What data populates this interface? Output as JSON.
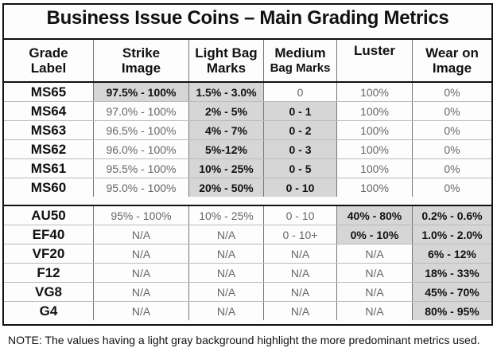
{
  "title": "Business Issue Coins – Main Grading Metrics",
  "headers": [
    {
      "line1": "Grade",
      "line2": "Label"
    },
    {
      "line1": "Strike",
      "line2": "Image"
    },
    {
      "line1": "Light Bag",
      "line2": "Marks"
    },
    {
      "line1": "Medium",
      "line2": "Bag Marks"
    },
    {
      "line1": "Luster",
      "line2": ""
    },
    {
      "line1": "Wear on",
      "line2": "Image"
    }
  ],
  "group1": [
    {
      "grade": "MS65",
      "strike": "97.5% - 100%",
      "light": "1.5% - 3.0%",
      "medium": "0",
      "luster": "100%",
      "wear": "0%"
    },
    {
      "grade": "MS64",
      "strike": "97.0% - 100%",
      "light": "2% - 5%",
      "medium": "0 - 1",
      "luster": "100%",
      "wear": "0%"
    },
    {
      "grade": "MS63",
      "strike": "96.5% - 100%",
      "light": "4% - 7%",
      "medium": "0 - 2",
      "luster": "100%",
      "wear": "0%"
    },
    {
      "grade": "MS62",
      "strike": "96.0% - 100%",
      "light": "5%-12%",
      "medium": "0 - 3",
      "luster": "100%",
      "wear": "0%"
    },
    {
      "grade": "MS61",
      "strike": "95.5% - 100%",
      "light": "10% - 25%",
      "medium": "0 - 5",
      "luster": "100%",
      "wear": "0%"
    },
    {
      "grade": "MS60",
      "strike": "95.0% - 100%",
      "light": "20% - 50%",
      "medium": "0 - 10",
      "luster": "100%",
      "wear": "0%"
    }
  ],
  "group2": [
    {
      "grade": "AU50",
      "strike": "95% - 100%",
      "light": "10% - 25%",
      "medium": "0 - 10",
      "luster": "40% - 80%",
      "wear": "0.2% - 0.6%"
    },
    {
      "grade": "EF40",
      "strike": "N/A",
      "light": "N/A",
      "medium": "0 - 10+",
      "luster": "0% - 10%",
      "wear": "1.0% - 2.0%"
    },
    {
      "grade": "VF20",
      "strike": "N/A",
      "light": "N/A",
      "medium": "N/A",
      "luster": "N/A",
      "wear": "6% - 12%"
    },
    {
      "grade": "F12",
      "strike": "N/A",
      "light": "N/A",
      "medium": "N/A",
      "luster": "N/A",
      "wear": "18% - 33%"
    },
    {
      "grade": "VG8",
      "strike": "N/A",
      "light": "N/A",
      "medium": "N/A",
      "luster": "N/A",
      "wear": "45% - 70%"
    },
    {
      "grade": "G4",
      "strike": "N/A",
      "light": "N/A",
      "medium": "N/A",
      "luster": "N/A",
      "wear": "80% - 95%"
    }
  ],
  "note": "NOTE:  The values having a light gray background highlight the more predominant metrics used.",
  "colors": {
    "highlight": "#d6d6d6",
    "text": "#111111",
    "muted": "#666666"
  }
}
